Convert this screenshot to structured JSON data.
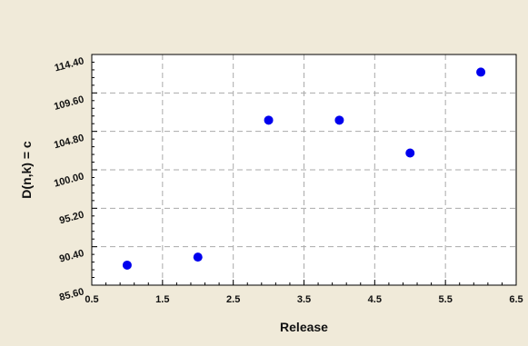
{
  "chart_data": {
    "type": "scatter",
    "xlabel": "Release",
    "ylabel": "D(n,k) = c",
    "xlim": [
      0.5,
      6.5
    ],
    "ylim": [
      85.6,
      114.4
    ],
    "x_ticks": [
      "0.5",
      "1.5",
      "2.5",
      "3.5",
      "4.5",
      "5.5",
      "6.5"
    ],
    "y_ticks": [
      "85.60",
      "90.40",
      "95.20",
      "100.00",
      "104.80",
      "109.60",
      "114.40"
    ],
    "grid": true,
    "series": [
      {
        "x": [
          1,
          2,
          3,
          4,
          5,
          6
        ],
        "y": [
          88.1,
          89.1,
          106.2,
          106.2,
          102.1,
          112.2
        ]
      }
    ]
  },
  "colors": {
    "background": "#f0ead9",
    "plot_background": "#ffffff",
    "grid": "#aaaaaa",
    "marker": "#0000ee"
  }
}
